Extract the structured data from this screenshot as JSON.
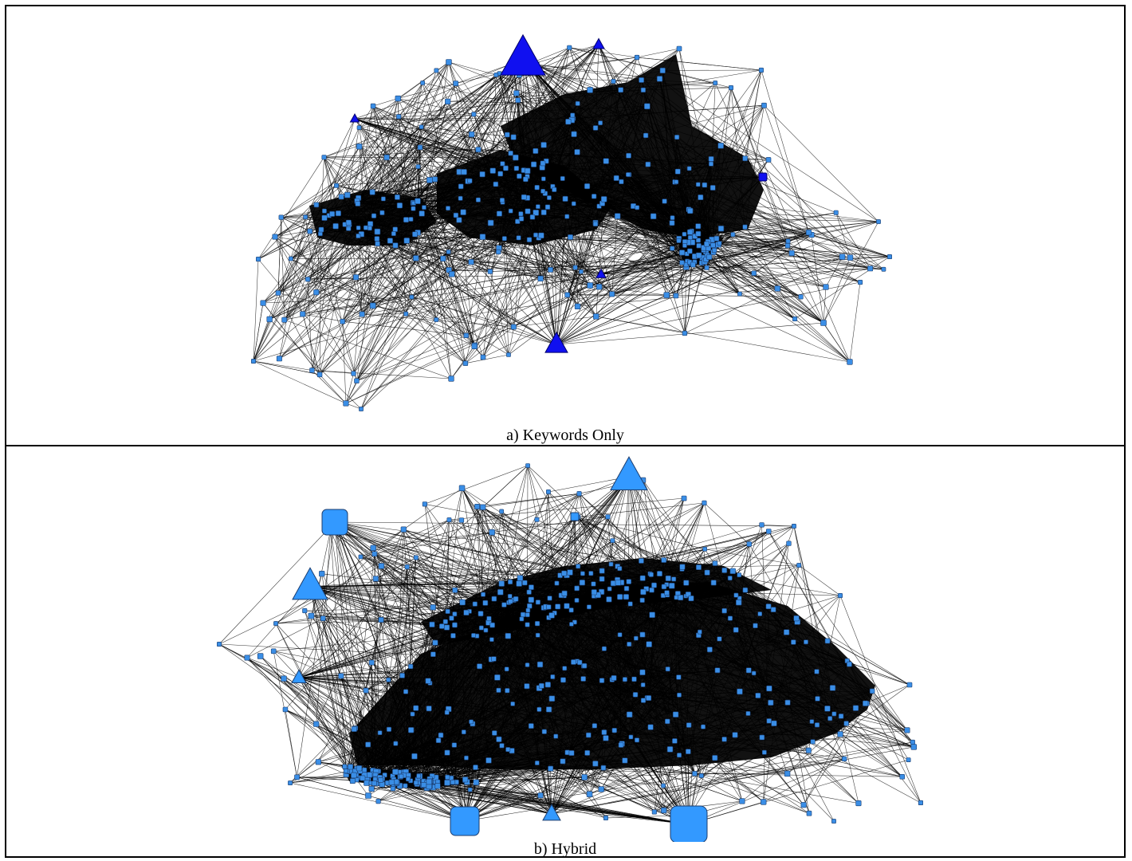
{
  "figure": {
    "panels": [
      {
        "id": "a",
        "caption": "a) Keywords Only",
        "colors": {
          "node_fill": "#3a8ee6",
          "node_stroke": "#1c3d6e",
          "hub_fill": "#1010f0",
          "hub_stroke": "#00006a",
          "edge": "#000000"
        },
        "hub_shape": "triangle",
        "node_shape": "small-square"
      },
      {
        "id": "b",
        "caption": "b) Hybrid",
        "colors": {
          "node_fill": "#3a8ee6",
          "node_stroke": "#1c3d6e",
          "hub_fill": "#3399ff",
          "hub_stroke": "#1c3d6e",
          "edge": "#000000"
        },
        "hub_shape": "triangle-and-square",
        "node_shape": "small-square"
      }
    ]
  }
}
